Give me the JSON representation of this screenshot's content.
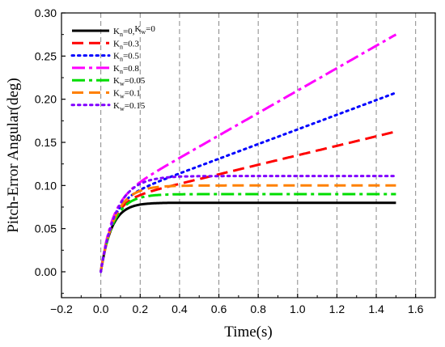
{
  "chart_data": {
    "type": "line",
    "xlabel": "Time(s)",
    "ylabel": "Pitch-Error Angular(deg)",
    "xlim": [
      -0.2,
      1.7
    ],
    "ylim": [
      -0.03,
      0.3
    ],
    "x_ticks": [
      "-0.2",
      "0.0",
      "0.2",
      "0.4",
      "0.6",
      "0.8",
      "1.0",
      "1.2",
      "1.4",
      "1.6"
    ],
    "y_ticks": [
      "0.00",
      "0.05",
      "0.10",
      "0.15",
      "0.20",
      "0.25",
      "0.30"
    ],
    "vertical_gridlines_dashed_at": [
      0.0,
      0.2,
      0.4,
      0.6,
      0.8,
      1.0,
      1.2,
      1.4,
      1.6
    ],
    "legend_position": "top-left",
    "series": [
      {
        "name": "Kn=0,Kw=0",
        "legend": {
          "k1": "K",
          "s1": "n",
          "v1": "=0,",
          "k2": "K",
          "s2": "w",
          "v2": "=0"
        },
        "color": "#000000",
        "dash": "solid",
        "plateau": 0.08,
        "slope": 0.0,
        "tau": 0.055,
        "x_end": 1.5
      },
      {
        "name": "Kn=0.3",
        "legend": {
          "k1": "K",
          "s1": "n",
          "v1": "=0.3"
        },
        "color": "#ff0000",
        "dash": "dash",
        "plateau": 0.08,
        "slope": 0.055,
        "tau": 0.055,
        "x_end": 1.5
      },
      {
        "name": "Kn=0.5",
        "legend": {
          "k1": "K",
          "s1": "n",
          "v1": "=0.5"
        },
        "color": "#0000ff",
        "dash": "dot",
        "plateau": 0.08,
        "slope": 0.085,
        "tau": 0.055,
        "x_end": 1.5
      },
      {
        "name": "Kn=0.8",
        "legend": {
          "k1": "K",
          "s1": "n",
          "v1": "=0.8"
        },
        "color": "#ff00ff",
        "dash": "dashdot",
        "plateau": 0.08,
        "slope": 0.13,
        "tau": 0.055,
        "x_end": 1.5
      },
      {
        "name": "Kw=0.05",
        "legend": {
          "k1": "K",
          "s1": "w",
          "v1": "=0.05"
        },
        "color": "#00dd00",
        "dash": "dashdot",
        "plateau": 0.09,
        "slope": 0.0,
        "tau": 0.065,
        "x_end": 1.5
      },
      {
        "name": "Kw=0.1",
        "legend": {
          "k1": "K",
          "s1": "w",
          "v1": "=0.1"
        },
        "color": "#ff8000",
        "dash": "dash",
        "plateau": 0.1,
        "slope": 0.0,
        "tau": 0.072,
        "x_end": 1.5
      },
      {
        "name": "Kw=0.15",
        "legend": {
          "k1": "K",
          "s1": "w",
          "v1": "=0.15"
        },
        "color": "#8000ff",
        "dash": "dot",
        "plateau": 0.111,
        "slope": 0.0,
        "tau": 0.08,
        "x_end": 1.5
      }
    ]
  }
}
